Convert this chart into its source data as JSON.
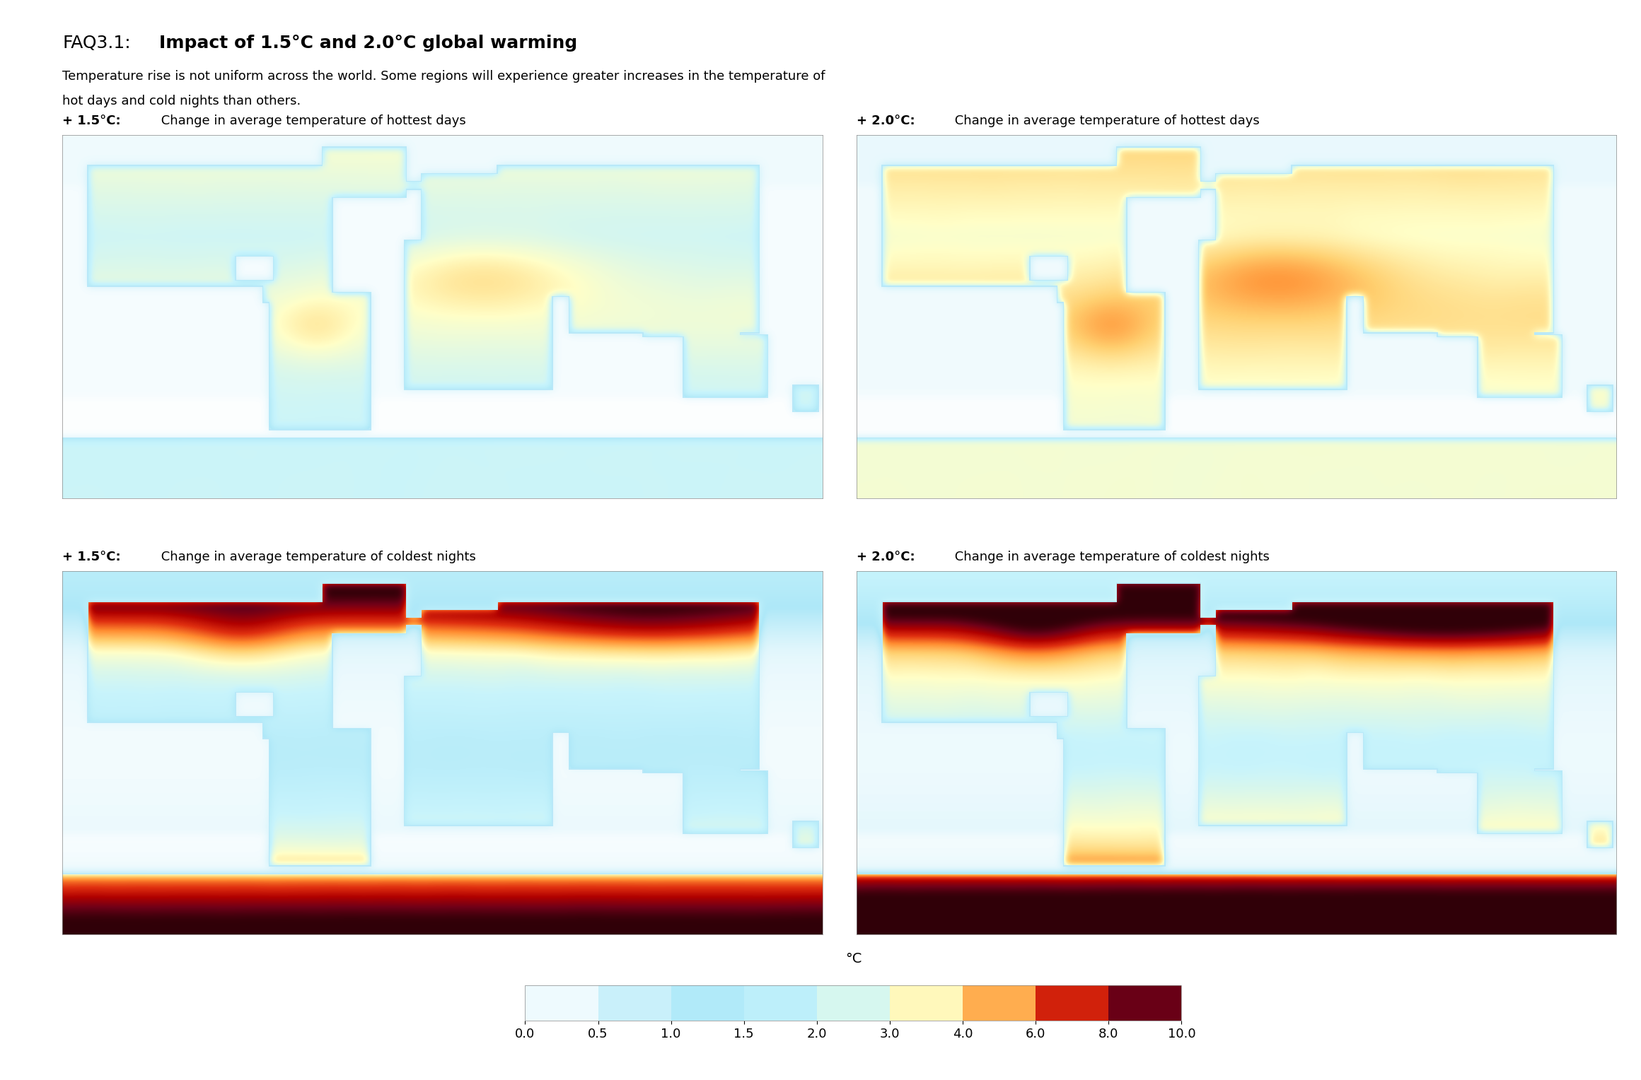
{
  "title_prefix": "FAQ3.1:",
  "title_bold": "Impact of 1.5°C and 2.0°C global warming",
  "subtitle_line1": "Temperature rise is not uniform across the world. Some regions will experience greater increases in the temperature of",
  "subtitle_line2": "hot days and cold nights than others.",
  "panel_labels": [
    "+ 1.5°C: Change in average temperature of hottest days",
    "+ 2.0°C: Change in average temperature of hottest days",
    "+ 1.5°C: Change in average temperature of coldest nights",
    "+ 2.0°C: Change in average temperature of coldest nights"
  ],
  "colorbar_label": "°C",
  "colorbar_ticks": [
    0.0,
    0.5,
    1.0,
    1.5,
    2.0,
    3.0,
    4.0,
    6.0,
    8.0,
    10.0
  ],
  "colorbar_colors": [
    "#ffffff",
    "#aee8f8",
    "#c8f4fc",
    "#ffffc8",
    "#ffd070",
    "#ff8c30",
    "#e03010",
    "#b00000",
    "#700018",
    "#300008"
  ],
  "background_color": "#ffffff",
  "ocean_color_light": "#b8e8f8",
  "fig_width": 23.2,
  "fig_height": 15.28,
  "title_fontsize": 18,
  "subtitle_fontsize": 13,
  "panel_label_fontsize": 13,
  "cbar_tick_fontsize": 13
}
